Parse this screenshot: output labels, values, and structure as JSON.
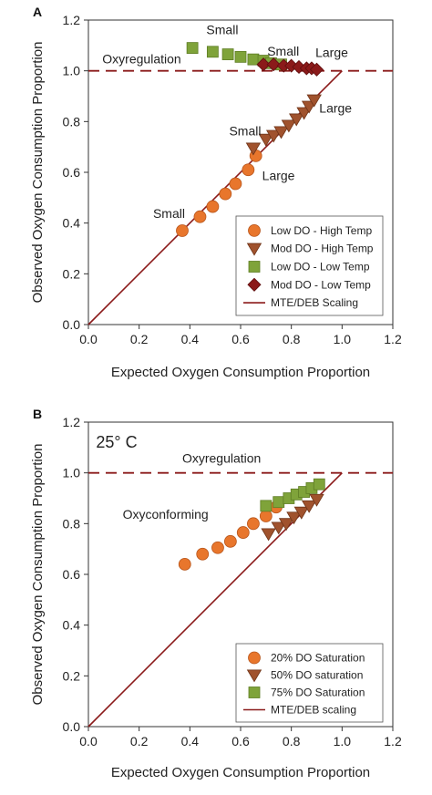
{
  "chart_data": [
    {
      "panel": "A",
      "type": "scatter",
      "xlabel": "Expected Oxygen Consumption Proportion",
      "ylabel": "Observed Oxygen Consumption Proportion",
      "xlim": [
        0.0,
        1.2
      ],
      "ylim": [
        0.0,
        1.2
      ],
      "xticks": [
        "0.0",
        "0.2",
        "0.4",
        "0.6",
        "0.8",
        "1.0",
        "1.2"
      ],
      "yticks": [
        "0.0",
        "0.2",
        "0.4",
        "0.6",
        "0.8",
        "1.0",
        "1.2"
      ],
      "reference_line_y": 1.0,
      "legend_position": "bottom-right",
      "series": [
        {
          "name": "Low DO - High Temp",
          "marker": "circle",
          "color": "#e8762c",
          "x": [
            0.37,
            0.44,
            0.49,
            0.54,
            0.58,
            0.63,
            0.66
          ],
          "y": [
            0.37,
            0.425,
            0.465,
            0.515,
            0.555,
            0.61,
            0.665
          ]
        },
        {
          "name": "Mod DO - High Temp",
          "marker": "triangle-down",
          "color": "#a0522d",
          "x": [
            0.65,
            0.7,
            0.73,
            0.76,
            0.79,
            0.82,
            0.85,
            0.87,
            0.89
          ],
          "y": [
            0.695,
            0.73,
            0.745,
            0.76,
            0.785,
            0.81,
            0.835,
            0.86,
            0.885
          ]
        },
        {
          "name": "Low DO - Low Temp",
          "marker": "square",
          "color": "#7fa33a",
          "x": [
            0.41,
            0.49,
            0.55,
            0.6,
            0.65,
            0.69,
            0.72,
            0.76
          ],
          "y": [
            1.09,
            1.075,
            1.065,
            1.055,
            1.045,
            1.04,
            1.03,
            1.025
          ]
        },
        {
          "name": "Mod DO - Low Temp",
          "marker": "diamond",
          "color": "#8b1a1a",
          "x": [
            0.69,
            0.73,
            0.77,
            0.8,
            0.83,
            0.86,
            0.88,
            0.9
          ],
          "y": [
            1.025,
            1.025,
            1.02,
            1.02,
            1.015,
            1.01,
            1.01,
            1.005
          ]
        },
        {
          "name": "MTE/DEB Scaling",
          "marker": "line",
          "color": "#8b1a1a",
          "x": [
            0.0,
            1.0
          ],
          "y": [
            0.0,
            1.0
          ]
        }
      ],
      "annotations": [
        {
          "text": "Oxyregulation",
          "x": 0.055,
          "y": 1.03
        },
        {
          "text": "Small",
          "x": 0.465,
          "y": 1.145
        },
        {
          "text": "Small",
          "x": 0.705,
          "y": 1.06
        },
        {
          "text": "Large",
          "x": 0.895,
          "y": 1.055
        },
        {
          "text": "Small",
          "x": 0.555,
          "y": 0.745
        },
        {
          "text": "Large",
          "x": 0.91,
          "y": 0.835
        },
        {
          "text": "Large",
          "x": 0.685,
          "y": 0.57
        },
        {
          "text": "Small",
          "x": 0.255,
          "y": 0.42
        }
      ]
    },
    {
      "panel": "B",
      "type": "scatter",
      "xlabel": "Expected Oxygen Consumption Proportion",
      "ylabel": "Observed Oxygen Consumption Proportion",
      "xlim": [
        0.0,
        1.2
      ],
      "ylim": [
        0.0,
        1.2
      ],
      "xticks": [
        "0.0",
        "0.2",
        "0.4",
        "0.6",
        "0.8",
        "1.0",
        "1.2"
      ],
      "yticks": [
        "0.0",
        "0.2",
        "0.4",
        "0.6",
        "0.8",
        "1.0",
        "1.2"
      ],
      "reference_line_y": 1.0,
      "legend_position": "bottom-right",
      "series": [
        {
          "name": "20% DO Saturation",
          "marker": "circle",
          "color": "#e8762c",
          "x": [
            0.38,
            0.45,
            0.51,
            0.56,
            0.61,
            0.65,
            0.7,
            0.74
          ],
          "y": [
            0.64,
            0.68,
            0.705,
            0.73,
            0.765,
            0.8,
            0.83,
            0.865
          ]
        },
        {
          "name": "50% DO saturation",
          "marker": "triangle-down",
          "color": "#a0522d",
          "x": [
            0.71,
            0.75,
            0.78,
            0.81,
            0.84,
            0.87,
            0.9
          ],
          "y": [
            0.76,
            0.785,
            0.8,
            0.825,
            0.845,
            0.87,
            0.895
          ]
        },
        {
          "name": "75% DO Saturation",
          "marker": "square",
          "color": "#7fa33a",
          "x": [
            0.7,
            0.75,
            0.79,
            0.82,
            0.85,
            0.88,
            0.91
          ],
          "y": [
            0.87,
            0.885,
            0.9,
            0.915,
            0.925,
            0.94,
            0.955
          ]
        },
        {
          "name": "MTE/DEB scaling",
          "marker": "line",
          "color": "#8b1a1a",
          "x": [
            0.0,
            1.0
          ],
          "y": [
            0.0,
            1.0
          ]
        }
      ],
      "annotations": [
        {
          "text": "25° C",
          "x": 0.03,
          "y": 1.1,
          "style": "large"
        },
        {
          "text": "Oxyregulation",
          "x": 0.37,
          "y": 1.04
        },
        {
          "text": "Oxyconforming",
          "x": 0.135,
          "y": 0.82
        }
      ]
    }
  ]
}
